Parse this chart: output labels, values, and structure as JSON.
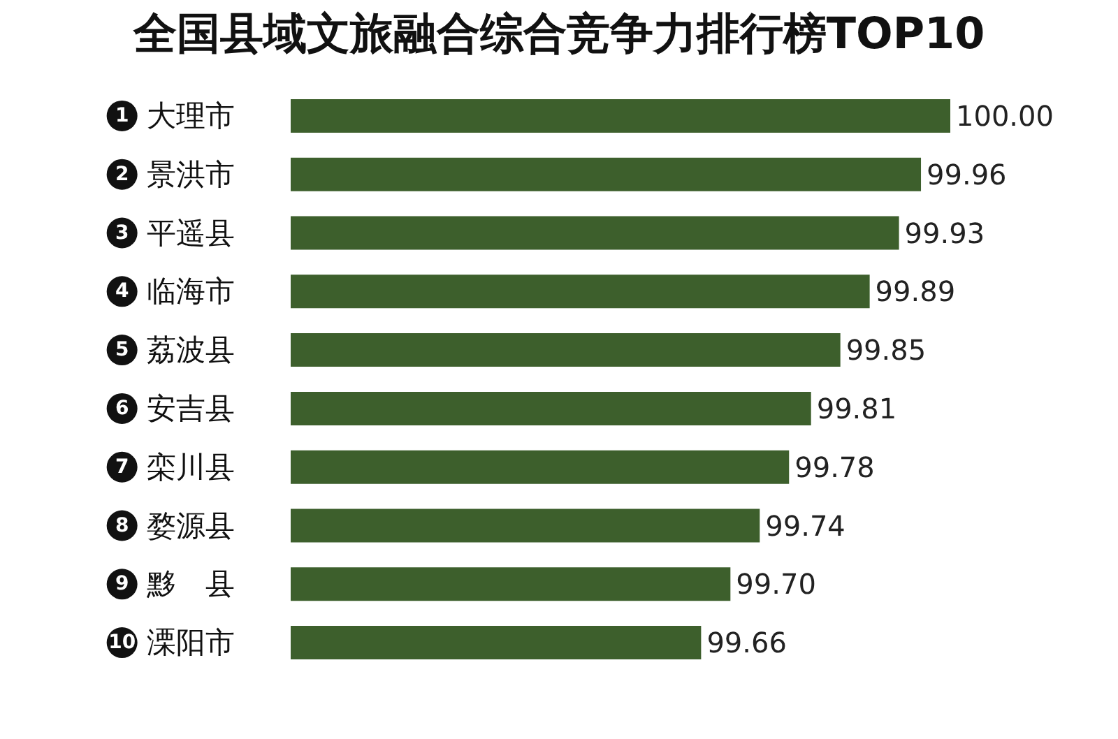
{
  "chart_data": {
    "type": "bar",
    "orientation": "horizontal",
    "title": "全国县域文旅融合综合竞争力排行榜TOP10",
    "categories": [
      "大理市",
      "景洪市",
      "平遥县",
      "临海市",
      "荔波县",
      "安吉县",
      "栾川县",
      "婺源县",
      "黟　县",
      "溧阳市"
    ],
    "values": [
      100.0,
      99.96,
      99.93,
      99.89,
      99.85,
      99.81,
      99.78,
      99.74,
      99.7,
      99.66
    ],
    "value_labels": [
      "100.00",
      "99.96",
      "99.93",
      "99.89",
      "99.85",
      "99.81",
      "99.78",
      "99.74",
      "99.70",
      "99.66"
    ],
    "color": "#3d5f2c",
    "xlim": [
      99.1,
      100
    ],
    "tick_labels": "y",
    "annotations": [
      "1",
      "2",
      "3",
      "4",
      "5",
      "6",
      "7",
      "8",
      "9",
      "10"
    ]
  }
}
